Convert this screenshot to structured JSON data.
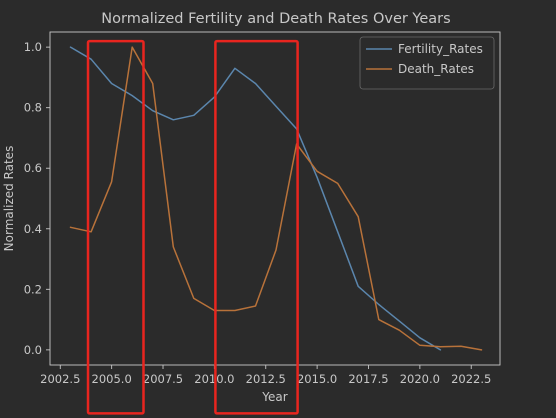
{
  "chart_data": {
    "type": "line",
    "title": "Normalized Fertility and Death Rates Over Years",
    "xlabel": "Year",
    "ylabel": "Normalized Rates",
    "xlim": [
      2002.0,
      2023.9
    ],
    "ylim": [
      -0.05,
      1.05
    ],
    "xticks": [
      {
        "value": 2002.5,
        "label": "2002.5"
      },
      {
        "value": 2005.0,
        "label": "2005.0"
      },
      {
        "value": 2007.5,
        "label": "2007.5"
      },
      {
        "value": 2010.0,
        "label": "2010.0"
      },
      {
        "value": 2012.5,
        "label": "2012.5"
      },
      {
        "value": 2015.0,
        "label": "2015.0"
      },
      {
        "value": 2017.5,
        "label": "2017.5"
      },
      {
        "value": 2020.0,
        "label": "2020.0"
      },
      {
        "value": 2022.5,
        "label": "2022.5"
      }
    ],
    "yticks": [
      {
        "value": 0.0,
        "label": "0.0"
      },
      {
        "value": 0.2,
        "label": "0.2"
      },
      {
        "value": 0.4,
        "label": "0.4"
      },
      {
        "value": 0.6,
        "label": "0.6"
      },
      {
        "value": 0.8,
        "label": "0.8"
      },
      {
        "value": 1.0,
        "label": "1.0"
      }
    ],
    "grid": false,
    "legend_position": "top-right",
    "series": [
      {
        "name": "Fertility_Rates",
        "color": "#5b86ad",
        "x": [
          2003,
          2004,
          2005,
          2006,
          2007,
          2008,
          2009,
          2010,
          2011,
          2012,
          2013,
          2014,
          2015,
          2016,
          2017,
          2018,
          2019,
          2020,
          2021
        ],
        "y": [
          1.0,
          0.96,
          0.88,
          0.84,
          0.79,
          0.76,
          0.775,
          0.835,
          0.93,
          0.88,
          0.805,
          0.73,
          0.57,
          0.39,
          0.21,
          0.15,
          0.095,
          0.04,
          0.0
        ]
      },
      {
        "name": "Death_Rates",
        "color": "#b8723a",
        "x": [
          2003,
          2004,
          2005,
          2006,
          2007,
          2008,
          2009,
          2010,
          2011,
          2012,
          2013,
          2014,
          2015,
          2016,
          2017,
          2018,
          2019,
          2020,
          2021,
          2022,
          2023
        ],
        "y": [
          0.405,
          0.39,
          0.555,
          1.0,
          0.88,
          0.34,
          0.17,
          0.13,
          0.13,
          0.145,
          0.33,
          0.68,
          0.59,
          0.55,
          0.44,
          0.1,
          0.065,
          0.015,
          0.01,
          0.012,
          0.0
        ]
      }
    ],
    "highlight_boxes": [
      {
        "x_range": [
          2003.85,
          2006.55
        ],
        "y_range": [
          -0.21,
          1.02
        ],
        "color": "#e8251f"
      },
      {
        "x_range": [
          2010.05,
          2014.05
        ],
        "y_range": [
          -0.21,
          1.02
        ],
        "color": "#e8251f"
      }
    ]
  }
}
